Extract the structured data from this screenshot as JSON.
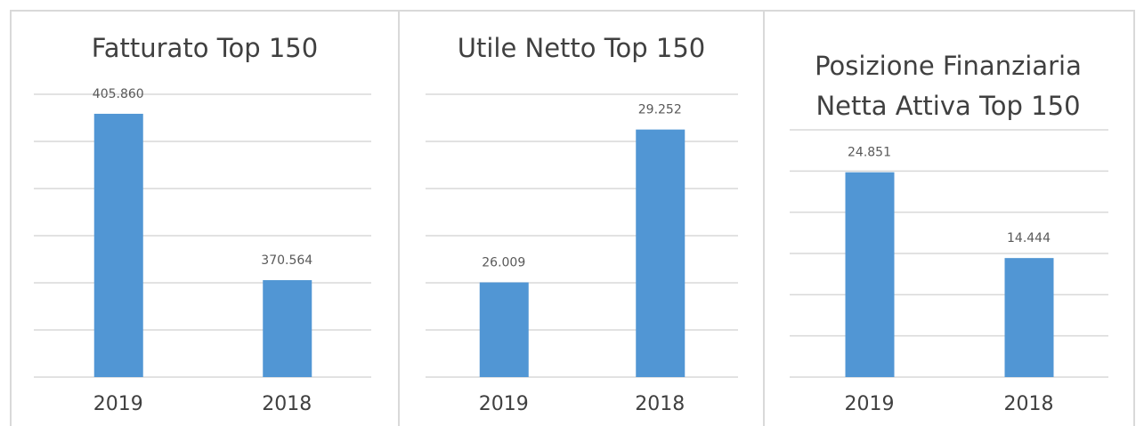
{
  "chart_data": [
    {
      "type": "bar",
      "title": "Fatturato Top 150",
      "categories": [
        "2019",
        "2018"
      ],
      "values": [
        405860,
        370564
      ],
      "value_labels": [
        "405.860",
        "370.564"
      ],
      "color": "#5196d4",
      "ylim": [
        350000,
        410000
      ],
      "yticks": [
        350000,
        360000,
        370000,
        380000,
        390000,
        400000,
        410000
      ],
      "grid": true
    },
    {
      "type": "bar",
      "title": "Utile Netto Top 150",
      "categories": [
        "2019",
        "2018"
      ],
      "values": [
        26009,
        29252
      ],
      "value_labels": [
        "26.009",
        "29.252"
      ],
      "color": "#5196d4",
      "ylim": [
        24000,
        30000
      ],
      "yticks": [
        24000,
        25000,
        26000,
        27000,
        28000,
        29000,
        30000
      ],
      "grid": true
    },
    {
      "type": "bar",
      "title": "Posizione Finanziaria Netta Attiva Top 150",
      "categories": [
        "2019",
        "2018"
      ],
      "values": [
        24851,
        14444
      ],
      "value_labels": [
        "24.851",
        "14.444"
      ],
      "color": "#5196d4",
      "ylim": [
        0,
        30000
      ],
      "yticks": [
        0,
        5000,
        10000,
        15000,
        20000,
        25000,
        30000
      ],
      "grid": true
    }
  ]
}
